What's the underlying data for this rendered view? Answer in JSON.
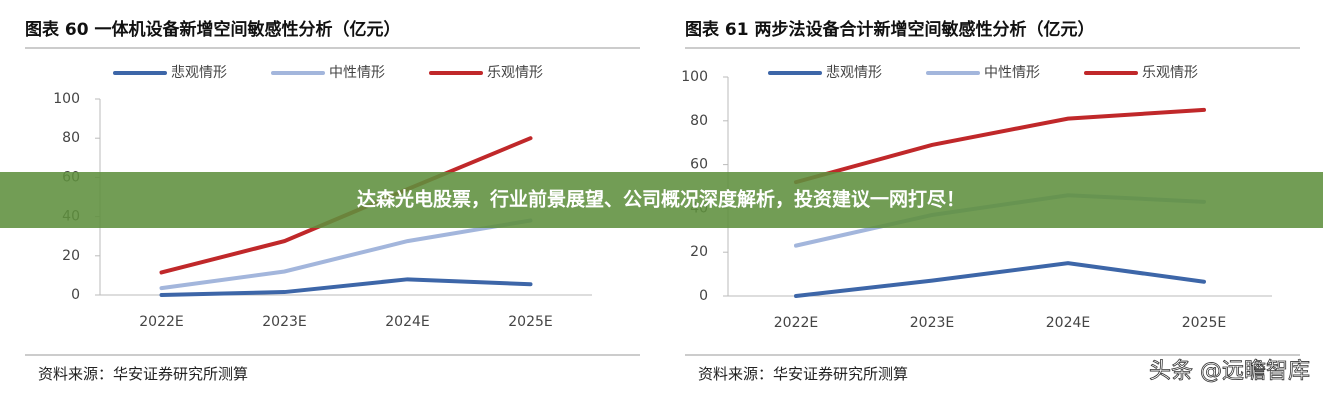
{
  "chart_data": [
    {
      "type": "line",
      "title": "图表 60  一体机设备新增空间敏感性分析（亿元）",
      "categories": [
        "2022E",
        "2023E",
        "2024E",
        "2025E"
      ],
      "series": [
        {
          "name": "悲观情形",
          "color": "#3d66a8",
          "values": [
            0,
            1.5,
            8,
            5.5
          ]
        },
        {
          "name": "中性情形",
          "color": "#a3b6dc",
          "values": [
            3.5,
            12,
            27.5,
            38
          ]
        },
        {
          "name": "乐观情形",
          "color": "#c0282a",
          "values": [
            11.5,
            27.5,
            54,
            80
          ]
        }
      ],
      "ylim": [
        0,
        100
      ],
      "yticks": [
        0,
        20,
        40,
        60,
        80,
        100
      ],
      "note": "资料来源：华安证券研究所测算"
    },
    {
      "type": "line",
      "title": "图表 61 两步法设备合计新增空间敏感性分析（亿元）",
      "categories": [
        "2022E",
        "2023E",
        "2024E",
        "2025E"
      ],
      "series": [
        {
          "name": "悲观情形",
          "color": "#3d66a8",
          "values": [
            0,
            7,
            15,
            6.5
          ]
        },
        {
          "name": "中性情形",
          "color": "#a3b6dc",
          "values": [
            23,
            37,
            46,
            43
          ]
        },
        {
          "name": "乐观情形",
          "color": "#c0282a",
          "values": [
            52,
            69,
            81,
            85
          ]
        }
      ],
      "ylim": [
        0,
        100
      ],
      "yticks": [
        0,
        20,
        40,
        60,
        80,
        100
      ],
      "note": "资料来源：华安证券研究所测算"
    }
  ],
  "banner": "达森光电股票，行业前景展望、公司概况深度解析，投资建议一网打尽！",
  "watermark": "头条 @远瞻智库"
}
